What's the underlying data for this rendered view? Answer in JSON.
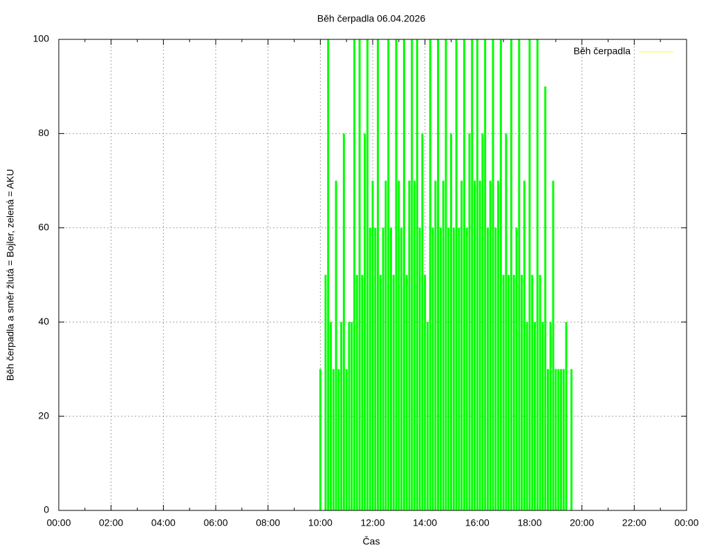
{
  "chart_data": {
    "type": "impulse",
    "title": "Běh čerpadla 06.04.2026",
    "xlabel": "Čas",
    "ylabel": "Běh čerpadla a směr žlutá = Bojler, zelená = AKU",
    "xlim": [
      0,
      24
    ],
    "xticks": [
      {
        "value": 0,
        "label": "00:00"
      },
      {
        "value": 2,
        "label": "02:00"
      },
      {
        "value": 4,
        "label": "04:00"
      },
      {
        "value": 6,
        "label": "06:00"
      },
      {
        "value": 8,
        "label": "08:00"
      },
      {
        "value": 10,
        "label": "10:00"
      },
      {
        "value": 12,
        "label": "12:00"
      },
      {
        "value": 14,
        "label": "14:00"
      },
      {
        "value": 16,
        "label": "16:00"
      },
      {
        "value": 18,
        "label": "18:00"
      },
      {
        "value": 20,
        "label": "20:00"
      },
      {
        "value": 22,
        "label": "22:00"
      },
      {
        "value": 24,
        "label": "00:00"
      }
    ],
    "ylim": [
      0,
      100
    ],
    "yticks": [
      0,
      20,
      40,
      60,
      80,
      100
    ],
    "grid": true,
    "legend": "top-right",
    "legend_color": "#ffff00",
    "series": [
      {
        "name": "Běh čerpadla",
        "color": "#00ff00",
        "x": [
          10.0,
          10.1,
          10.2,
          10.3,
          10.4,
          10.5,
          10.6,
          10.7,
          10.8,
          10.9,
          11.0,
          11.1,
          11.2,
          11.3,
          11.4,
          11.5,
          11.6,
          11.7,
          11.8,
          11.9,
          12.0,
          12.1,
          12.2,
          12.3,
          12.4,
          12.5,
          12.6,
          12.7,
          12.8,
          12.9,
          13.0,
          13.1,
          13.2,
          13.3,
          13.4,
          13.5,
          13.6,
          13.7,
          13.8,
          13.9,
          14.0,
          14.1,
          14.2,
          14.3,
          14.4,
          14.5,
          14.6,
          14.7,
          14.8,
          14.9,
          15.0,
          15.1,
          15.2,
          15.3,
          15.4,
          15.5,
          15.6,
          15.7,
          15.8,
          15.9,
          16.0,
          16.1,
          16.2,
          16.3,
          16.4,
          16.5,
          16.6,
          16.7,
          16.8,
          16.9,
          17.0,
          17.1,
          17.2,
          17.3,
          17.4,
          17.5,
          17.6,
          17.7,
          17.8,
          17.9,
          18.0,
          18.1,
          18.2,
          18.3,
          18.4,
          18.5,
          18.6,
          18.7,
          18.8,
          18.9,
          19.0,
          19.1,
          19.2,
          19.3,
          19.4,
          19.5,
          19.6
        ],
        "values": [
          30,
          0,
          50,
          100,
          40,
          30,
          70,
          30,
          40,
          80,
          30,
          40,
          40,
          100,
          50,
          100,
          50,
          80,
          100,
          60,
          70,
          60,
          100,
          50,
          60,
          70,
          100,
          60,
          50,
          100,
          70,
          60,
          100,
          50,
          70,
          100,
          70,
          100,
          60,
          80,
          50,
          40,
          100,
          60,
          70,
          100,
          60,
          70,
          100,
          60,
          80,
          60,
          100,
          60,
          70,
          100,
          60,
          80,
          100,
          70,
          100,
          70,
          80,
          100,
          60,
          70,
          100,
          60,
          70,
          100,
          50,
          80,
          50,
          100,
          50,
          60,
          100,
          50,
          70,
          40,
          100,
          50,
          40,
          100,
          50,
          40,
          90,
          30,
          40,
          70,
          30,
          30,
          30,
          30,
          40,
          0,
          30
        ]
      }
    ]
  }
}
